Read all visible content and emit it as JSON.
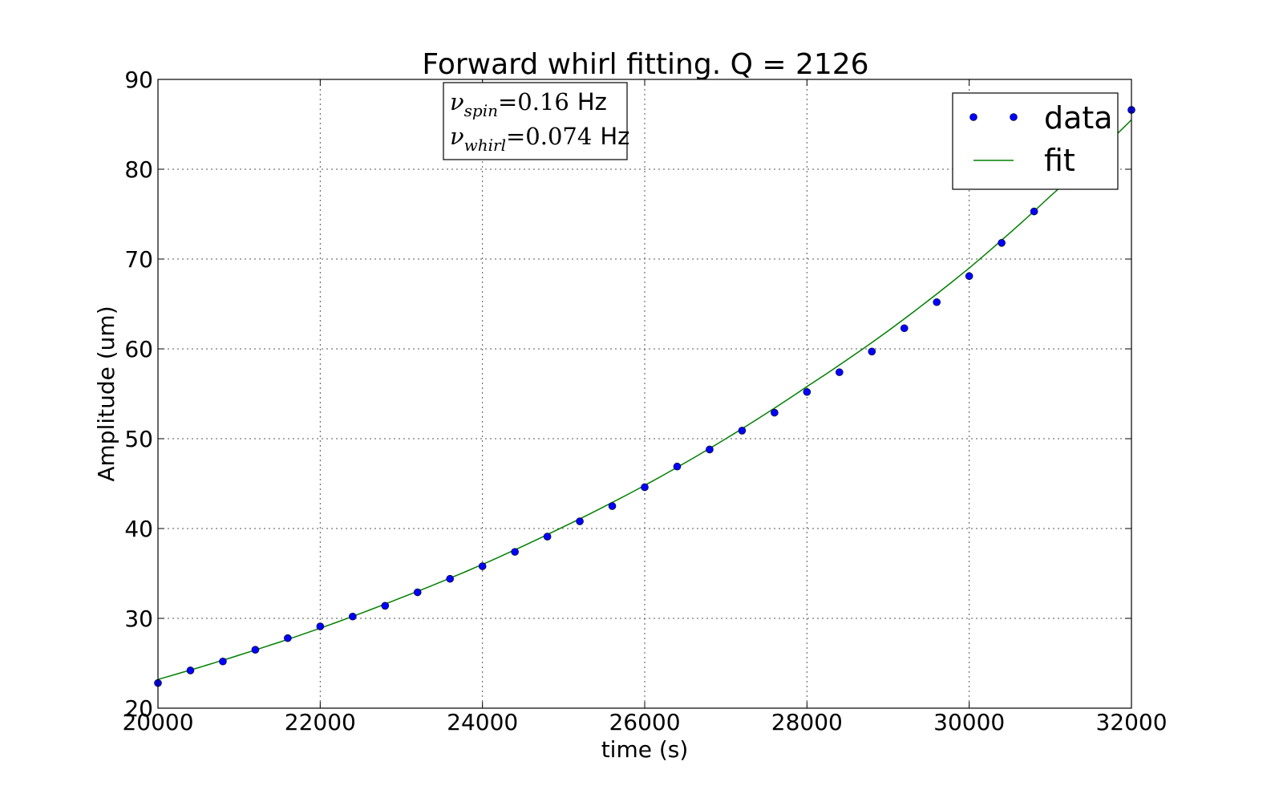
{
  "chart_data": {
    "type": "scatter",
    "title": "Forward whirl fitting. Q = 2126",
    "xlabel": "time (s)",
    "ylabel": "Amplitude (um)",
    "xlim": [
      20000,
      32000
    ],
    "ylim": [
      20,
      90
    ],
    "xticks": [
      20000,
      22000,
      24000,
      26000,
      28000,
      30000,
      32000
    ],
    "yticks": [
      20,
      30,
      40,
      50,
      60,
      70,
      80,
      90
    ],
    "xtick_labels": [
      "20000",
      "22000",
      "24000",
      "26000",
      "28000",
      "30000",
      "32000"
    ],
    "ytick_labels": [
      "20",
      "30",
      "40",
      "50",
      "60",
      "70",
      "80",
      "90"
    ],
    "grid": true,
    "legend_position": "top-right",
    "series": [
      {
        "name": "data",
        "style": "markers",
        "color": "#0000ff",
        "x": [
          20000,
          20400,
          20800,
          21200,
          21600,
          22000,
          22400,
          22800,
          23200,
          23600,
          24000,
          24400,
          24800,
          25200,
          25600,
          26000,
          26400,
          26800,
          27200,
          27600,
          28000,
          28400,
          28800,
          29200,
          29600,
          30000,
          30400,
          30800,
          31200,
          31600,
          32000
        ],
        "y": [
          22.8,
          24.2,
          25.2,
          26.5,
          27.8,
          29.1,
          30.2,
          31.4,
          32.9,
          34.4,
          35.8,
          37.4,
          39.1,
          40.8,
          42.5,
          44.6,
          46.9,
          48.8,
          50.9,
          52.9,
          55.2,
          57.4,
          59.7,
          62.3,
          65.2,
          68.1,
          71.8,
          75.3,
          79.2,
          82.9,
          86.6
        ]
      },
      {
        "name": "fit",
        "style": "line",
        "color": "#008000",
        "model": "exponential",
        "x": [
          20000,
          21000,
          22000,
          23000,
          24000,
          25000,
          26000,
          27000,
          28000,
          29000,
          30000,
          31000,
          32000
        ],
        "y": [
          23.2,
          25.9,
          28.9,
          32.3,
          36.0,
          40.2,
          44.8,
          50.0,
          55.8,
          62.0,
          69.0,
          77.0,
          85.5
        ]
      }
    ],
    "annotation": {
      "line1": {
        "symbol": "ν",
        "subscript": "spin",
        "value": "=0.16",
        "unit": "Hz"
      },
      "line2": {
        "symbol": "ν",
        "subscript": "whirl",
        "value": "=0.074",
        "unit": "Hz"
      }
    }
  }
}
